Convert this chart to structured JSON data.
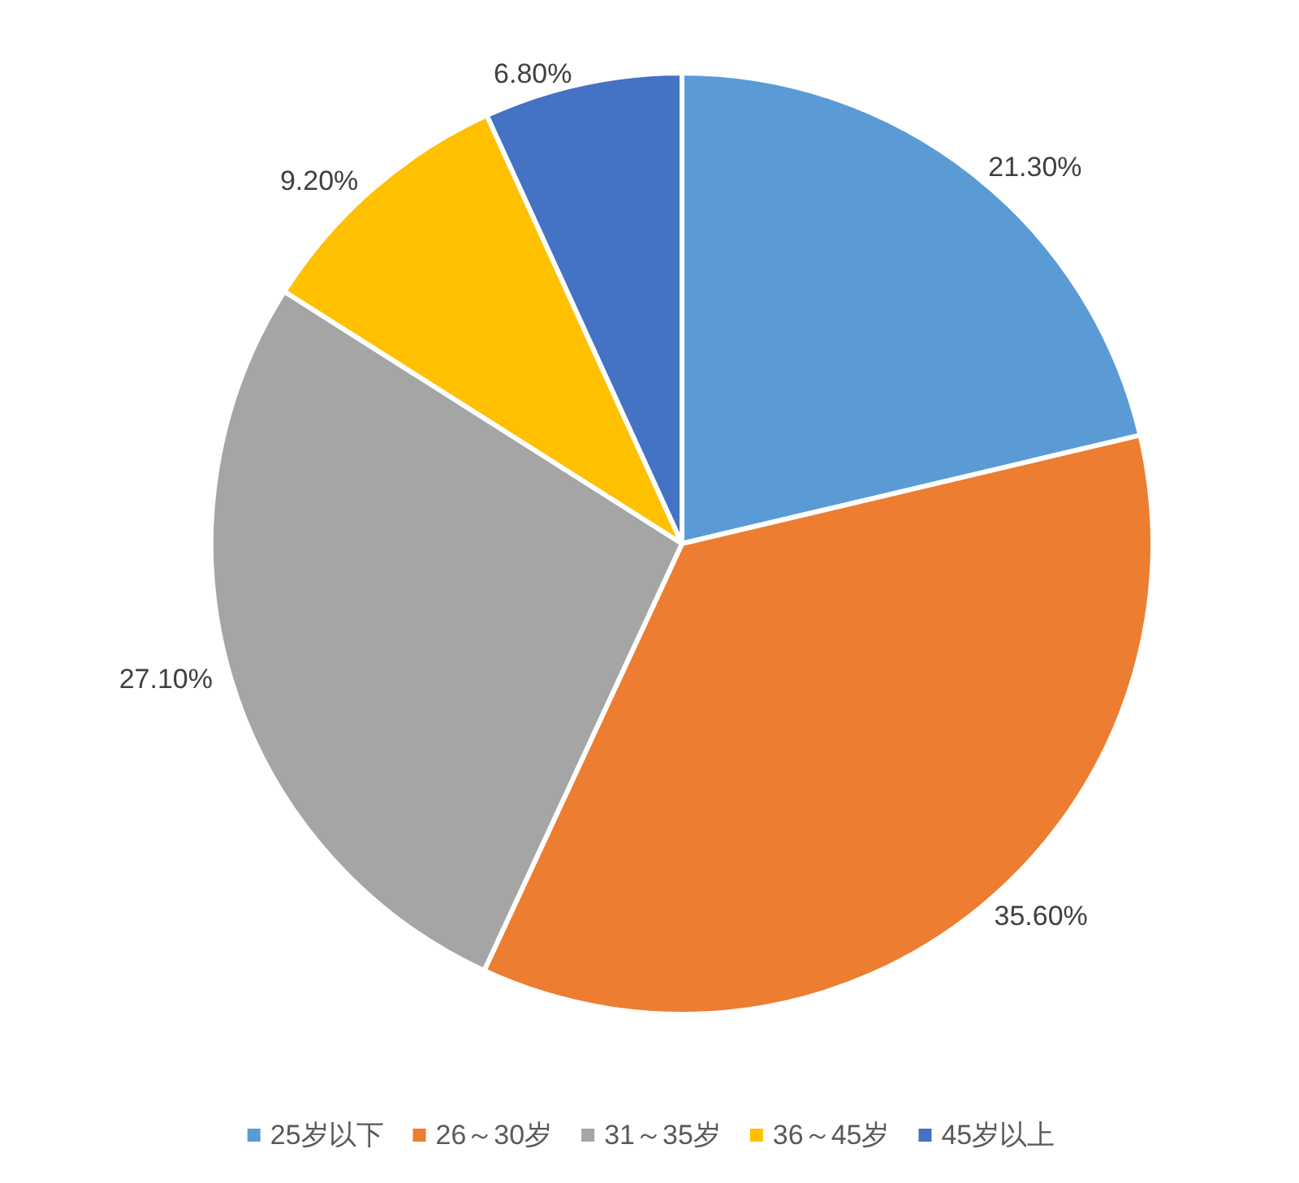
{
  "chart_data": {
    "type": "pie",
    "categories": [
      "25岁以下",
      "26～30岁",
      "31～35岁",
      "36～45岁",
      "45岁以上"
    ],
    "values": [
      21.3,
      35.6,
      27.1,
      9.2,
      6.8
    ],
    "colors": [
      "#5b9bd5",
      "#ed7d31",
      "#a5a5a5",
      "#ffc000",
      "#4472c4"
    ],
    "value_labels": [
      "21.30%",
      "35.60%",
      "27.10%",
      "9.20%",
      "6.80%"
    ],
    "legend": "bottom"
  }
}
